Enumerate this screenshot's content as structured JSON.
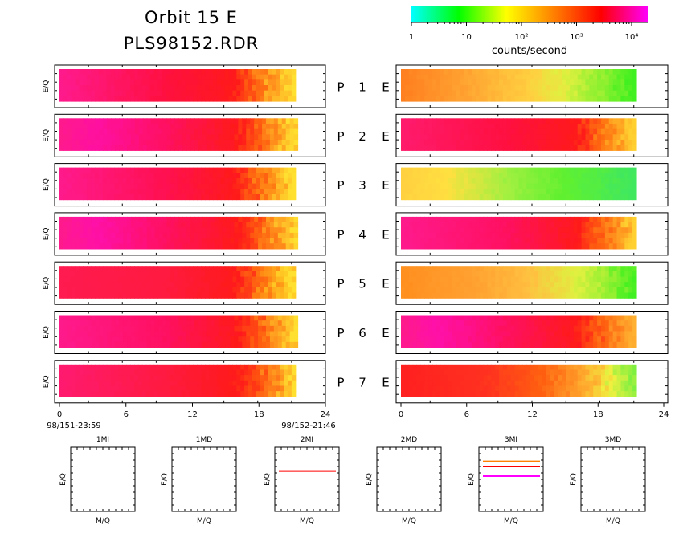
{
  "title": {
    "line1": "Orbit 15 E",
    "line2": "PLS98152.RDR"
  },
  "colorbar": {
    "label": "counts/second",
    "ticks": [
      "1",
      "10",
      "10²",
      "10³",
      "10⁴"
    ],
    "stops": [
      "#00ffff",
      "#00ff00",
      "#ffff00",
      "#ff8000",
      "#ff0000",
      "#ff00ff"
    ],
    "scale": "log"
  },
  "chart_data": [
    {
      "type": "heatmap",
      "description_ylabel": "E/Q",
      "ylabel": "E/Q",
      "xticks": [
        "0",
        "6",
        "12",
        "18",
        "24"
      ],
      "xlim": [
        0,
        24
      ],
      "x_start_label": "98/151-23:59",
      "x_end_label": "98/152-21:46",
      "panels": [
        {
          "row": "P 1",
          "side": "left",
          "data_end_hour": 21.3,
          "profile": [
            [
              0,
              "#ff1a8c"
            ],
            [
              0.45,
              "#ff1040"
            ],
            [
              0.75,
              "#ff1a1a"
            ],
            [
              0.82,
              "#ff6010"
            ],
            [
              0.9,
              "#ffa020"
            ],
            [
              1,
              "#ffe030"
            ]
          ]
        },
        {
          "row": "P 2",
          "side": "left",
          "data_end_hour": 21.5,
          "profile": [
            [
              0,
              "#ff1a8c"
            ],
            [
              0.15,
              "#ff10a0"
            ],
            [
              0.45,
              "#ff1060"
            ],
            [
              0.75,
              "#ff1a1a"
            ],
            [
              0.85,
              "#ff6010"
            ],
            [
              1,
              "#ffe030"
            ]
          ]
        },
        {
          "row": "P 3",
          "side": "left",
          "data_end_hour": 21.3,
          "profile": [
            [
              0,
              "#ff1a8c"
            ],
            [
              0.45,
              "#ff1050"
            ],
            [
              0.75,
              "#ff1a1a"
            ],
            [
              0.85,
              "#ff7010"
            ],
            [
              1,
              "#ffe030"
            ]
          ]
        },
        {
          "row": "P 4",
          "side": "left",
          "data_end_hour": 21.5,
          "profile": [
            [
              0,
              "#ff1a8c"
            ],
            [
              0.15,
              "#ff10a8"
            ],
            [
              0.45,
              "#ff1060"
            ],
            [
              0.75,
              "#ff1a1a"
            ],
            [
              0.85,
              "#ff6010"
            ],
            [
              1,
              "#ffe030"
            ]
          ]
        },
        {
          "row": "P 5",
          "side": "left",
          "data_end_hour": 21.3,
          "profile": [
            [
              0,
              "#ff1a50"
            ],
            [
              0.45,
              "#ff1a40"
            ],
            [
              0.75,
              "#ff1a1a"
            ],
            [
              0.85,
              "#ff7010"
            ],
            [
              0.95,
              "#ffc020"
            ],
            [
              1,
              "#ffe030"
            ]
          ]
        },
        {
          "row": "P 6",
          "side": "left",
          "data_end_hour": 21.5,
          "profile": [
            [
              0,
              "#ff1a8c"
            ],
            [
              0.45,
              "#ff1060"
            ],
            [
              0.75,
              "#ff1a1a"
            ],
            [
              0.85,
              "#ff6010"
            ],
            [
              1,
              "#ffe030"
            ]
          ]
        },
        {
          "row": "P 7",
          "side": "left",
          "data_end_hour": 21.3,
          "profile": [
            [
              0,
              "#ff1a70"
            ],
            [
              0.45,
              "#ff1a40"
            ],
            [
              0.75,
              "#ff1a1a"
            ],
            [
              0.85,
              "#ff5010"
            ],
            [
              0.95,
              "#ffa020"
            ],
            [
              1,
              "#ffe030"
            ]
          ]
        },
        {
          "row": "P 1",
          "side": "right",
          "data_end_hour": 21.5,
          "profile": [
            [
              0,
              "#ff8020"
            ],
            [
              0.25,
              "#ffa030"
            ],
            [
              0.55,
              "#ffd040"
            ],
            [
              0.7,
              "#e0f040"
            ],
            [
              0.85,
              "#90f030"
            ],
            [
              1,
              "#40f020"
            ]
          ]
        },
        {
          "row": "P 2",
          "side": "right",
          "data_end_hour": 21.5,
          "profile": [
            [
              0,
              "#ff1a6c"
            ],
            [
              0.45,
              "#ff1040"
            ],
            [
              0.75,
              "#ff1a1a"
            ],
            [
              0.85,
              "#ff7010"
            ],
            [
              1,
              "#ffd030"
            ]
          ]
        },
        {
          "row": "P 3",
          "side": "right",
          "data_end_hour": 21.5,
          "profile": [
            [
              0,
              "#ffd040"
            ],
            [
              0.2,
              "#ffe040"
            ],
            [
              0.45,
              "#a0f040"
            ],
            [
              0.7,
              "#60f030"
            ],
            [
              1,
              "#40e860"
            ]
          ]
        },
        {
          "row": "P 4",
          "side": "right",
          "data_end_hour": 21.5,
          "profile": [
            [
              0,
              "#ff1a8c"
            ],
            [
              0.45,
              "#ff1060"
            ],
            [
              0.75,
              "#ff1a1a"
            ],
            [
              0.85,
              "#ff6010"
            ],
            [
              1,
              "#ffd030"
            ]
          ]
        },
        {
          "row": "P 5",
          "side": "right",
          "data_end_hour": 21.5,
          "profile": [
            [
              0,
              "#ff9020"
            ],
            [
              0.3,
              "#ffa030"
            ],
            [
              0.55,
              "#ffc040"
            ],
            [
              0.75,
              "#e0f040"
            ],
            [
              0.9,
              "#90f030"
            ],
            [
              1,
              "#40f020"
            ]
          ]
        },
        {
          "row": "P 6",
          "side": "right",
          "data_end_hour": 21.5,
          "profile": [
            [
              0,
              "#ff1a8c"
            ],
            [
              0.15,
              "#ff10a8"
            ],
            [
              0.45,
              "#ff1060"
            ],
            [
              0.75,
              "#ff1a1a"
            ],
            [
              0.85,
              "#ff6010"
            ],
            [
              1,
              "#ffb030"
            ]
          ]
        },
        {
          "row": "P 7",
          "side": "right",
          "data_end_hour": 21.5,
          "profile": [
            [
              0,
              "#ff2020"
            ],
            [
              0.35,
              "#ff3020"
            ],
            [
              0.6,
              "#ff6010"
            ],
            [
              0.8,
              "#ffb030"
            ],
            [
              0.9,
              "#f0f040"
            ],
            [
              1,
              "#80f040"
            ]
          ]
        }
      ]
    },
    {
      "type": "scatter",
      "xlabel": "M/Q",
      "ylabel": "E/Q",
      "mass_panels": [
        {
          "title": "1MI",
          "lines": []
        },
        {
          "title": "1MD",
          "lines": []
        },
        {
          "title": "2MI",
          "lines": [
            {
              "y": 0.63,
              "color": "#ff0000"
            }
          ]
        },
        {
          "title": "2MD",
          "lines": []
        },
        {
          "title": "3MI",
          "lines": [
            {
              "y": 0.78,
              "color": "#ff8000"
            },
            {
              "y": 0.7,
              "color": "#ff0000"
            },
            {
              "y": 0.55,
              "color": "#ff00ff"
            }
          ]
        },
        {
          "title": "3MD",
          "lines": []
        }
      ]
    }
  ],
  "row_labels": {
    "P 1": [
      "P",
      "1",
      "E"
    ],
    "P 2": [
      "P",
      "2",
      "E"
    ],
    "P 3": [
      "P",
      "3",
      "E"
    ],
    "P 4": [
      "P",
      "4",
      "E"
    ],
    "P 5": [
      "P",
      "5",
      "E"
    ],
    "P 6": [
      "P",
      "6",
      "E"
    ],
    "P 7": [
      "P",
      "7",
      "E"
    ]
  }
}
